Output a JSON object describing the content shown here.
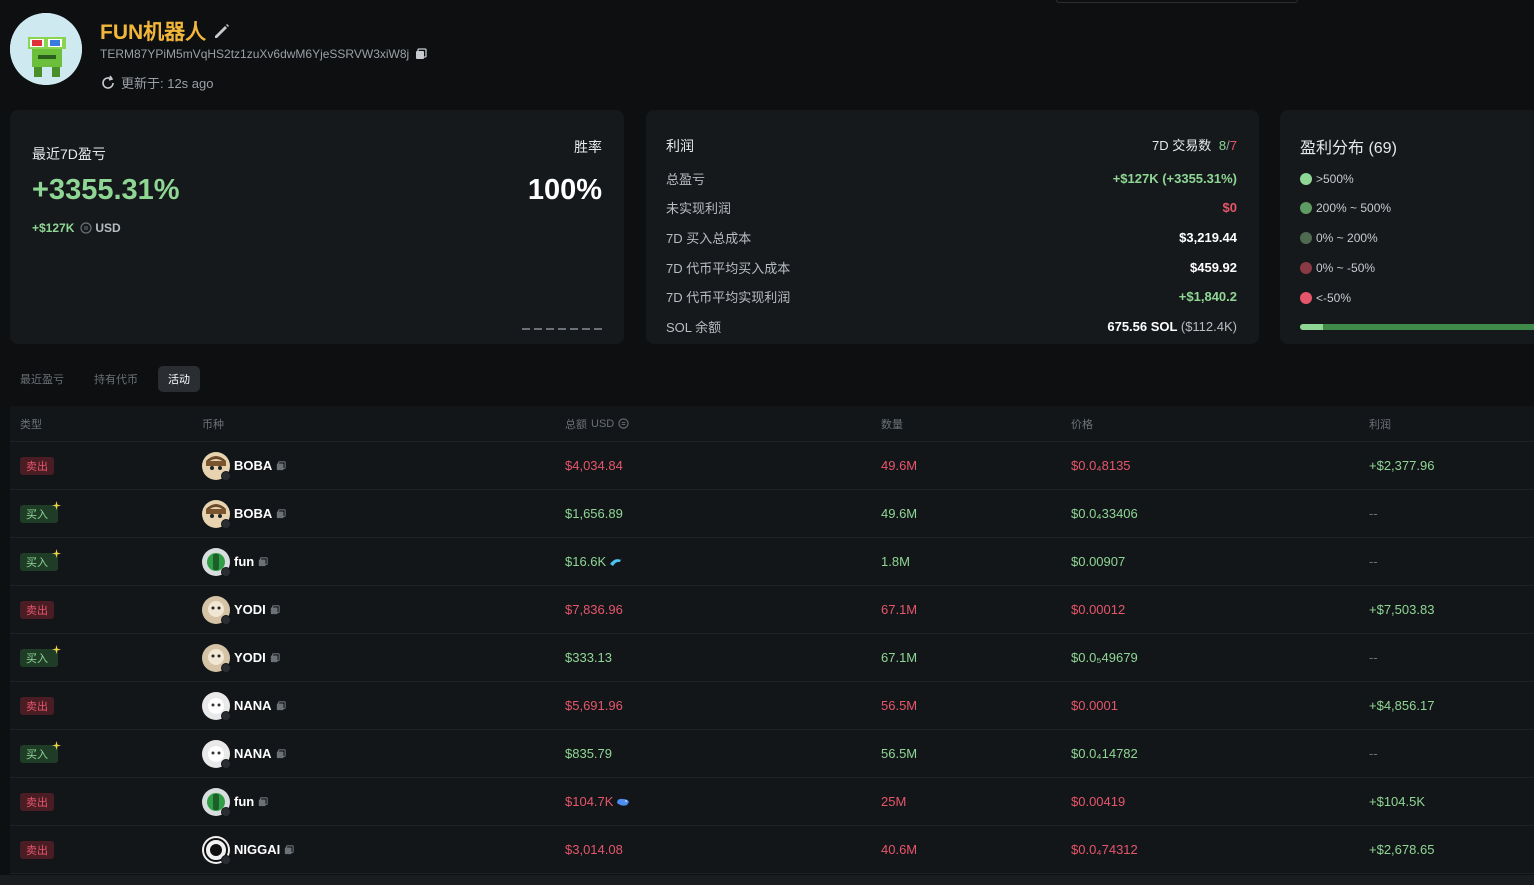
{
  "wallet": {
    "name": "FUN机器人",
    "address": "TERM87YPiM5mVqHS2tz1zuXv6dwM6YjeSSRVW3xiW8j",
    "updated": "更新于: 12s ago"
  },
  "pnl_card": {
    "label": "最近7D盈亏",
    "value": "+3355.31%",
    "amount": "+$127K",
    "currency": "USD",
    "winrate_label": "胜率",
    "winrate_value": "100%"
  },
  "profit_card": {
    "title": "利润",
    "trades_label": "7D 交易数",
    "trades_win": "8",
    "trades_sep": "/",
    "trades_loss": "7",
    "rows": [
      {
        "key": "总盈亏",
        "value": "+$127K (+3355.31%)"
      },
      {
        "key": "未实现利润",
        "value": "$0"
      },
      {
        "key": "7D 买入总成本",
        "value": "$3,219.44"
      },
      {
        "key": "7D 代币平均买入成本",
        "value": "$459.92"
      },
      {
        "key": "7D 代币平均实现利润",
        "value": "+$1,840.2"
      },
      {
        "key": "SOL 余额",
        "value": "675.56 SOL",
        "extra": "($112.4K)"
      }
    ]
  },
  "distribution": {
    "title": "盈利分布 (69)",
    "items": [
      {
        "label": ">500%",
        "color": "#8fd694"
      },
      {
        "label": "200% ~ 500%",
        "color": "#5f9c63"
      },
      {
        "label": "0% ~ 200%",
        "color": "#4e6b52"
      },
      {
        "label": "0% ~ -50%",
        "color": "#8a3a45"
      },
      {
        "label": "<-50%",
        "color": "#e5566b"
      }
    ],
    "bar_fraction": 0.09,
    "colors": {
      "bar_bg": "#3f8a4a",
      "bar_seg": "#8fd694"
    }
  },
  "tabs": [
    "最近盈亏",
    "持有代币",
    "活动"
  ],
  "active_tab": "活动",
  "table": {
    "headers": {
      "type": "类型",
      "token": "币种",
      "total": "总额",
      "total_unit": "USD",
      "qty": "数量",
      "price": "价格",
      "profit": "利润"
    },
    "rows": [
      {
        "type": "卖出",
        "side": "sell",
        "token": "BOBA",
        "icon": "boba",
        "total": "$4,034.84",
        "qty": "49.6M",
        "price": "$0.0₄8135",
        "profit": "+$2,377.96"
      },
      {
        "type": "买入",
        "side": "buy",
        "token": "BOBA",
        "icon": "boba",
        "total": "$1,656.89",
        "qty": "49.6M",
        "price": "$0.0₄33406",
        "profit": "--"
      },
      {
        "type": "买入",
        "side": "buy",
        "token": "fun",
        "icon": "fun",
        "total": "$16.6K",
        "whale": "dolphin",
        "qty": "1.8M",
        "price": "$0.00907",
        "profit": "--"
      },
      {
        "type": "卖出",
        "side": "sell",
        "token": "YODI",
        "icon": "yodi",
        "total": "$7,836.96",
        "qty": "67.1M",
        "price": "$0.00012",
        "profit": "+$7,503.83"
      },
      {
        "type": "买入",
        "side": "buy",
        "token": "YODI",
        "icon": "yodi",
        "total": "$333.13",
        "qty": "67.1M",
        "price": "$0.0₅49679",
        "profit": "--"
      },
      {
        "type": "卖出",
        "side": "sell",
        "token": "NANA",
        "icon": "nana",
        "total": "$5,691.96",
        "qty": "56.5M",
        "price": "$0.0001",
        "profit": "+$4,856.17"
      },
      {
        "type": "买入",
        "side": "buy",
        "token": "NANA",
        "icon": "nana",
        "total": "$835.79",
        "qty": "56.5M",
        "price": "$0.0₄14782",
        "profit": "--"
      },
      {
        "type": "卖出",
        "side": "sell",
        "token": "fun",
        "icon": "fun",
        "total": "$104.7K",
        "whale": "whale",
        "qty": "25M",
        "price": "$0.00419",
        "profit": "+$104.5K"
      },
      {
        "type": "卖出",
        "side": "sell",
        "token": "NIGGAI",
        "icon": "niggai",
        "total": "$3,014.08",
        "qty": "40.6M",
        "price": "$0.0₄74312",
        "profit": "+$2,678.65"
      }
    ]
  }
}
